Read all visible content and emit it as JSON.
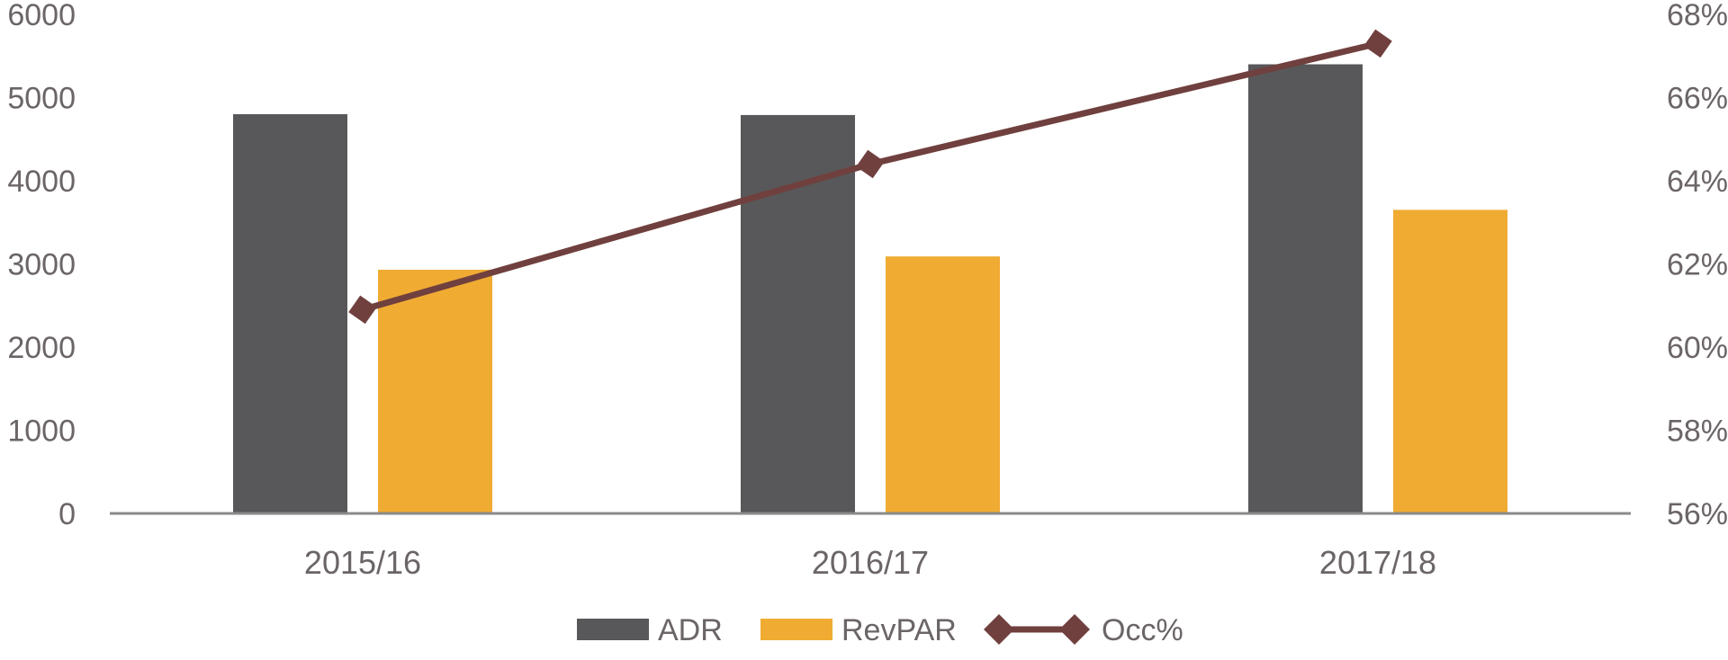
{
  "chart_data": {
    "type": "bar",
    "categories": [
      "2015/16",
      "2016/17",
      "2017/18"
    ],
    "series": [
      {
        "name": "ADR",
        "type": "bar",
        "axis": "left",
        "color": "#58585a",
        "values": [
          4800,
          4790,
          5400
        ]
      },
      {
        "name": "RevPAR",
        "type": "bar",
        "axis": "left",
        "color": "#f0ab33",
        "values": [
          2930,
          3090,
          3650
        ]
      },
      {
        "name": "Occ%",
        "type": "line",
        "axis": "right",
        "color": "#70403e",
        "marker": "diamond",
        "values": [
          60.9,
          64.4,
          67.3
        ]
      }
    ],
    "y_left": {
      "ylim": [
        0,
        6000
      ],
      "ticks": [
        0,
        1000,
        2000,
        3000,
        4000,
        5000,
        6000
      ],
      "tick_labels": [
        "0",
        "1000",
        "2000",
        "3000",
        "4000",
        "5000",
        "6000"
      ]
    },
    "y_right": {
      "ylim": [
        56,
        68
      ],
      "ticks": [
        56,
        58,
        60,
        62,
        64,
        66,
        68
      ],
      "tick_labels": [
        "56%",
        "58%",
        "60%",
        "62%",
        "64%",
        "66%",
        "68%"
      ]
    },
    "title": "",
    "xlabel": "",
    "ylabel": "",
    "grid": false,
    "legend_position": "bottom",
    "axis_color": "#8a8a8a"
  }
}
